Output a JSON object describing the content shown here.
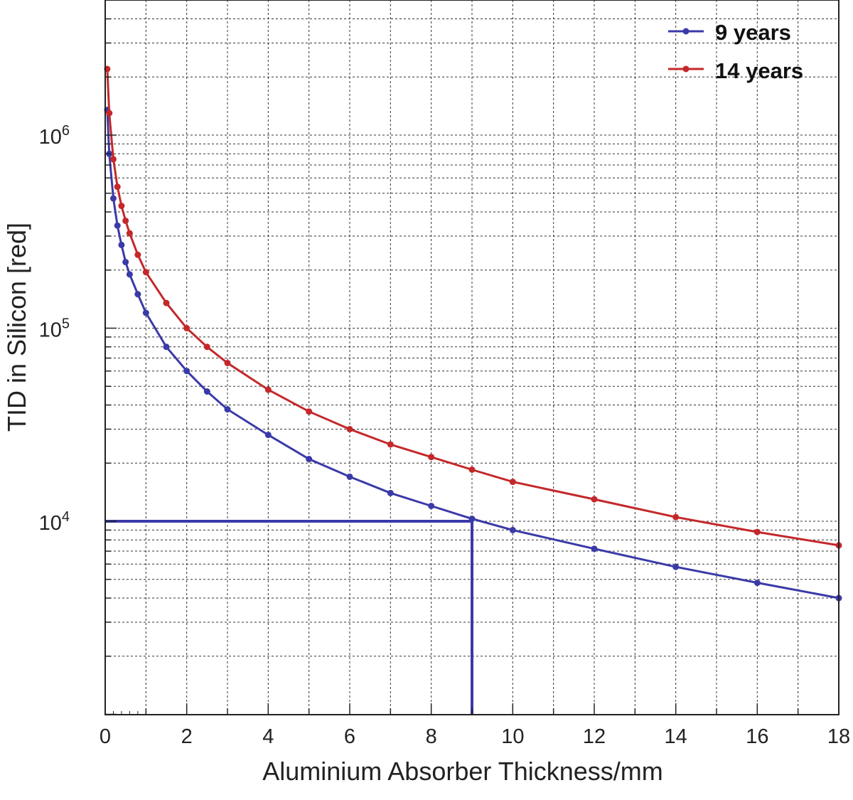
{
  "chart_data": {
    "type": "line",
    "title": "",
    "xlabel": "Aluminium Absorber Thickness/mm",
    "ylabel": "TID in Silicon [red]",
    "xlim": [
      0,
      18
    ],
    "ylim": [
      1000,
      5000000
    ],
    "yscale": "log",
    "grid": true,
    "legend_position": "top-right",
    "x_ticks": [
      "0",
      "2",
      "4",
      "6",
      "8",
      "10",
      "12",
      "14",
      "16",
      "18"
    ],
    "y_ticks": [
      {
        "base": "10",
        "exp": "4"
      },
      {
        "base": "10",
        "exp": "5"
      },
      {
        "base": "10",
        "exp": "6"
      }
    ],
    "series": [
      {
        "name": "9 years",
        "color": "#3a3aa8",
        "points": [
          [
            0.05,
            1350000
          ],
          [
            0.1,
            800000
          ],
          [
            0.2,
            470000
          ],
          [
            0.3,
            340000
          ],
          [
            0.4,
            270000
          ],
          [
            0.5,
            220000
          ],
          [
            0.6,
            190000
          ],
          [
            0.8,
            150000
          ],
          [
            1,
            120000
          ],
          [
            1.5,
            80000
          ],
          [
            2,
            60000
          ],
          [
            2.5,
            47000
          ],
          [
            3,
            38000
          ],
          [
            4,
            28000
          ],
          [
            5,
            21000
          ],
          [
            6,
            17000
          ],
          [
            7,
            14000
          ],
          [
            8,
            12000
          ],
          [
            9,
            10300
          ],
          [
            10,
            9000
          ],
          [
            12,
            7200
          ],
          [
            14,
            5800
          ],
          [
            16,
            4800
          ],
          [
            18,
            4000
          ]
        ]
      },
      {
        "name": "14 years",
        "color": "#c4282a",
        "points": [
          [
            0.05,
            2200000
          ],
          [
            0.1,
            1300000
          ],
          [
            0.2,
            750000
          ],
          [
            0.3,
            540000
          ],
          [
            0.4,
            430000
          ],
          [
            0.5,
            360000
          ],
          [
            0.6,
            310000
          ],
          [
            0.8,
            240000
          ],
          [
            1,
            195000
          ],
          [
            1.5,
            135000
          ],
          [
            2,
            100000
          ],
          [
            2.5,
            80000
          ],
          [
            3,
            66000
          ],
          [
            4,
            48000
          ],
          [
            5,
            37000
          ],
          [
            6,
            30000
          ],
          [
            7,
            25000
          ],
          [
            8,
            21500
          ],
          [
            9,
            18500
          ],
          [
            10,
            16000
          ],
          [
            12,
            13000
          ],
          [
            14,
            10500
          ],
          [
            16,
            8800
          ],
          [
            18,
            7500
          ]
        ]
      }
    ],
    "reference_lines": {
      "color": "#3a3aa8",
      "y_value": 10000,
      "x_value": 9
    }
  }
}
